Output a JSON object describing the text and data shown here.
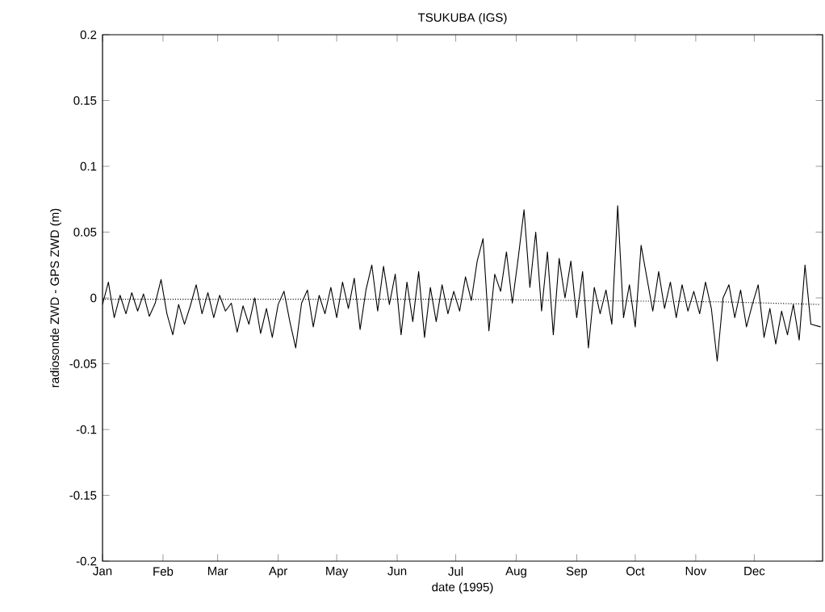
{
  "chart_data": {
    "type": "line",
    "title": "TSUKUBA (IGS)",
    "xlabel": "date (1995)",
    "ylabel": "radiosonde ZWD - GPS ZWD (m)",
    "xlim": [
      "1995-01-01",
      "1996-01-05"
    ],
    "xticks": [
      {
        "value": "1995-01-01",
        "label": "Jan"
      },
      {
        "value": "1995-02-01",
        "label": "Feb"
      },
      {
        "value": "1995-03-01",
        "label": "Mar"
      },
      {
        "value": "1995-04-01",
        "label": "Apr"
      },
      {
        "value": "1995-05-01",
        "label": "May"
      },
      {
        "value": "1995-06-01",
        "label": "Jun"
      },
      {
        "value": "1995-07-01",
        "label": "Jul"
      },
      {
        "value": "1995-08-01",
        "label": "Aug"
      },
      {
        "value": "1995-09-01",
        "label": "Sep"
      },
      {
        "value": "1995-10-01",
        "label": "Oct"
      },
      {
        "value": "1995-11-01",
        "label": "Nov"
      },
      {
        "value": "1995-12-01",
        "label": "Dec"
      }
    ],
    "ylim": [
      -0.2,
      0.2
    ],
    "yticks": [
      -0.2,
      -0.15,
      -0.1,
      -0.05,
      0,
      0.05,
      0.1,
      0.15,
      0.2
    ],
    "series": [
      {
        "color": "#000000",
        "line_style": "solid",
        "x": [
          "1995-01-01",
          "1995-01-04",
          "1995-01-07",
          "1995-01-10",
          "1995-01-13",
          "1995-01-16",
          "1995-01-19",
          "1995-01-22",
          "1995-01-25",
          "1995-01-28",
          "1995-01-31",
          "1995-02-03",
          "1995-02-06",
          "1995-02-09",
          "1995-02-12",
          "1995-02-15",
          "1995-02-18",
          "1995-02-21",
          "1995-02-24",
          "1995-02-27",
          "1995-03-02",
          "1995-03-05",
          "1995-03-08",
          "1995-03-11",
          "1995-03-14",
          "1995-03-17",
          "1995-03-20",
          "1995-03-23",
          "1995-03-26",
          "1995-03-29",
          "1995-04-01",
          "1995-04-04",
          "1995-04-07",
          "1995-04-10",
          "1995-04-13",
          "1995-04-16",
          "1995-04-19",
          "1995-04-22",
          "1995-04-25",
          "1995-04-28",
          "1995-05-01",
          "1995-05-04",
          "1995-05-07",
          "1995-05-10",
          "1995-05-13",
          "1995-05-16",
          "1995-05-19",
          "1995-05-22",
          "1995-05-25",
          "1995-05-28",
          "1995-05-31",
          "1995-06-03",
          "1995-06-06",
          "1995-06-09",
          "1995-06-12",
          "1995-06-15",
          "1995-06-18",
          "1995-06-21",
          "1995-06-24",
          "1995-06-27",
          "1995-06-30",
          "1995-07-03",
          "1995-07-06",
          "1995-07-09",
          "1995-07-12",
          "1995-07-15",
          "1995-07-18",
          "1995-07-21",
          "1995-07-24",
          "1995-07-27",
          "1995-07-30",
          "1995-08-02",
          "1995-08-05",
          "1995-08-08",
          "1995-08-11",
          "1995-08-14",
          "1995-08-17",
          "1995-08-20",
          "1995-08-23",
          "1995-08-26",
          "1995-08-29",
          "1995-09-01",
          "1995-09-04",
          "1995-09-07",
          "1995-09-10",
          "1995-09-13",
          "1995-09-16",
          "1995-09-19",
          "1995-09-22",
          "1995-09-25",
          "1995-09-28",
          "1995-10-01",
          "1995-10-04",
          "1995-10-07",
          "1995-10-10",
          "1995-10-13",
          "1995-10-16",
          "1995-10-19",
          "1995-10-22",
          "1995-10-25",
          "1995-10-28",
          "1995-10-31",
          "1995-11-03",
          "1995-11-06",
          "1995-11-09",
          "1995-11-12",
          "1995-11-15",
          "1995-11-18",
          "1995-11-21",
          "1995-11-24",
          "1995-11-27",
          "1995-11-30",
          "1995-12-03",
          "1995-12-06",
          "1995-12-09",
          "1995-12-12",
          "1995-12-15",
          "1995-12-18",
          "1995-12-21",
          "1995-12-24",
          "1995-12-27",
          "1995-12-30",
          "1996-01-04"
        ],
        "values": [
          -0.005,
          0.012,
          -0.015,
          0.002,
          -0.012,
          0.004,
          -0.01,
          0.003,
          -0.014,
          -0.004,
          0.014,
          -0.012,
          -0.028,
          -0.005,
          -0.02,
          -0.006,
          0.01,
          -0.012,
          0.004,
          -0.015,
          0.002,
          -0.01,
          -0.004,
          -0.026,
          -0.006,
          -0.02,
          0.0,
          -0.027,
          -0.008,
          -0.03,
          -0.005,
          0.005,
          -0.018,
          -0.038,
          -0.004,
          0.006,
          -0.022,
          0.002,
          -0.012,
          0.008,
          -0.015,
          0.012,
          -0.008,
          0.015,
          -0.024,
          0.006,
          0.025,
          -0.01,
          0.024,
          -0.005,
          0.018,
          -0.028,
          0.012,
          -0.018,
          0.02,
          -0.03,
          0.008,
          -0.018,
          0.01,
          -0.012,
          0.005,
          -0.01,
          0.016,
          -0.002,
          0.028,
          0.045,
          -0.025,
          0.018,
          0.005,
          0.035,
          -0.004,
          0.03,
          0.067,
          0.008,
          0.05,
          -0.01,
          0.035,
          -0.028,
          0.03,
          0.0,
          0.028,
          -0.015,
          0.02,
          -0.038,
          0.008,
          -0.012,
          0.006,
          -0.02,
          0.07,
          -0.015,
          0.01,
          -0.022,
          0.04,
          0.015,
          -0.01,
          0.02,
          -0.008,
          0.012,
          -0.015,
          0.01,
          -0.01,
          0.005,
          -0.012,
          0.012,
          -0.008,
          -0.048,
          0.0,
          0.01,
          -0.015,
          0.006,
          -0.022,
          -0.005,
          0.01,
          -0.03,
          -0.008,
          -0.035,
          -0.01,
          -0.028,
          -0.005,
          -0.032,
          0.025,
          -0.02,
          -0.022
        ]
      },
      {
        "color": "#000000",
        "line_style": "dotted",
        "x": [
          "1995-01-01",
          "1995-04-01",
          "1995-07-01",
          "1995-09-01",
          "1995-11-15",
          "1996-01-04"
        ],
        "values": [
          -0.001,
          -0.001,
          -0.001,
          -0.002,
          -0.003,
          -0.005
        ]
      }
    ]
  }
}
